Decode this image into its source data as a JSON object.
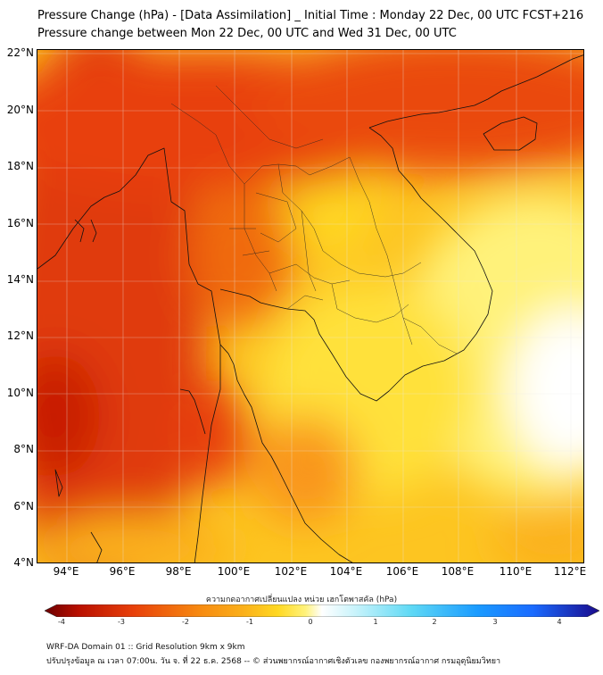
{
  "title_line1": "Pressure Change (hPa) - [Data Assimilation] _ Initial Time : Monday 22 Dec, 00 UTC FCST+216",
  "title_line2": "Pressure change between Mon 22 Dec, 00 UTC and Wed 31 Dec, 00 UTC",
  "lat_labels": [
    "22°N",
    "20°N",
    "18°N",
    "16°N",
    "14°N",
    "12°N",
    "10°N",
    "8°N",
    "6°N",
    "4°N"
  ],
  "lon_labels": [
    "94°E",
    "96°E",
    "98°E",
    "100°E",
    "102°E",
    "104°E",
    "106°E",
    "108°E",
    "110°E",
    "112°E"
  ],
  "colorbar_title": "ความกดอากาศเปลี่ยนแปลง หน่วย เฮกโตพาสคัล (hPa)",
  "colorbar_ticks": [
    "-4",
    "-3",
    "-2",
    "-1",
    "0",
    "1",
    "2",
    "3",
    "4"
  ],
  "footer_line1": "WRF-DA Domain 01 :: Grid Resolution 9km x 9km",
  "footer_line2": "ปรับปรุงข้อมูล ณ เวลา 07:00น. วัน จ. ที่ 22 ธ.ค. 2568 -- © ส่วนพยากรณ์อากาศเชิงตัวเลข กองพยากรณ์อากาศ กรมอุตุนิยมวิทยา",
  "colors": {
    "deep_red": "#d81e05",
    "red": "#e8400a",
    "orange": "#f78a10",
    "amber": "#fbb11a",
    "yellow": "#ffd821",
    "pale_yellow": "#fff27a",
    "white": "#ffffff",
    "light_blue": "#5fd9f5",
    "blue": "#1a6bff",
    "dark_blue": "#1a0a8c",
    "dark_red": "#6b0000"
  }
}
